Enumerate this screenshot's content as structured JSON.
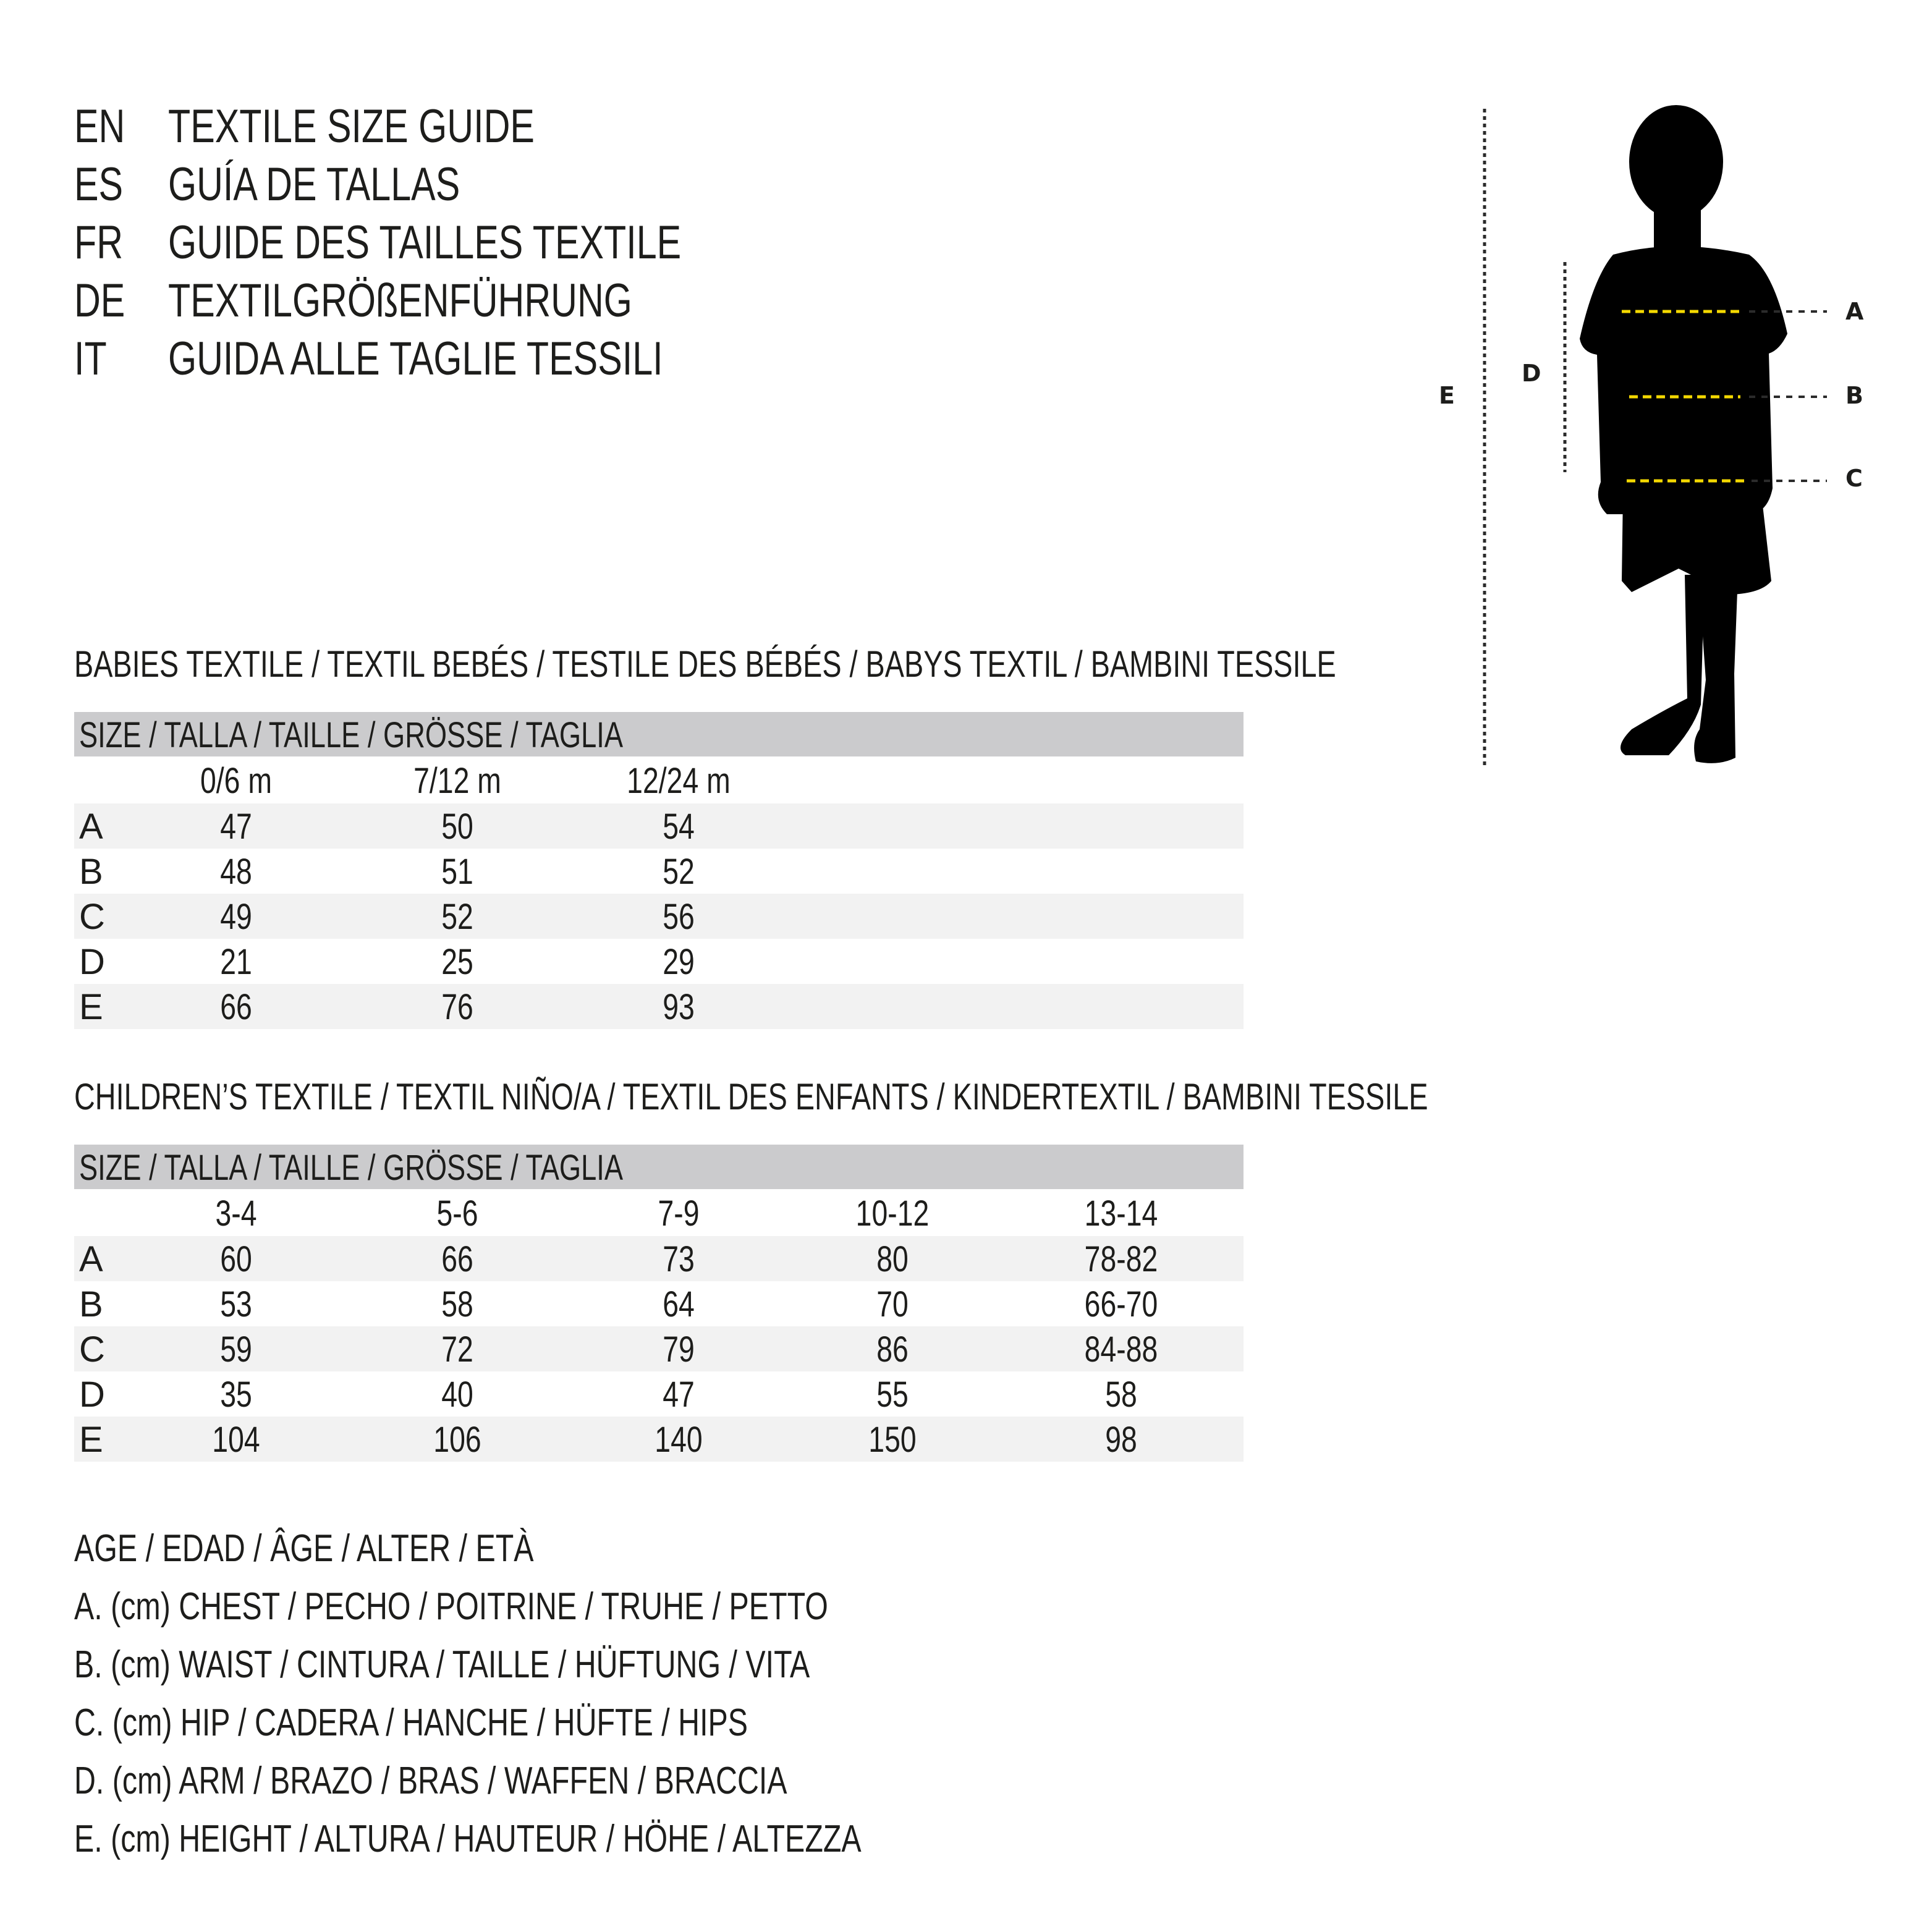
{
  "header": {
    "lines": [
      {
        "code": "EN",
        "title": "TEXTILE SIZE GUIDE"
      },
      {
        "code": "ES",
        "title": "GUÍA DE TALLAS"
      },
      {
        "code": "FR",
        "title": "GUIDE DES TAILLES TEXTILE"
      },
      {
        "code": "DE",
        "title": "TEXTILGRÖßENFÜHRUNG"
      },
      {
        "code": "IT",
        "title": "GUIDA ALLE TAGLIE TESSILI"
      }
    ]
  },
  "babies": {
    "title": "BABIES TEXTILE / TEXTIL BEBÉS / TESTILE DES BÉBÉS / BABYS TEXTIL / BAMBINI TESSILE",
    "size_header": "SIZE / TALLA / TAILLE / GRÖSSE / TAGLIA",
    "columns": [
      "0/6 m",
      "7/12 m",
      "12/24 m"
    ],
    "rows": [
      {
        "label": "A",
        "values": [
          "47",
          "50",
          "54"
        ]
      },
      {
        "label": "B",
        "values": [
          "48",
          "51",
          "52"
        ]
      },
      {
        "label": "C",
        "values": [
          "49",
          "52",
          "56"
        ]
      },
      {
        "label": "D",
        "values": [
          "21",
          "25",
          "29"
        ]
      },
      {
        "label": "E",
        "values": [
          "66",
          "76",
          "93"
        ]
      }
    ]
  },
  "children": {
    "title": "CHILDREN’S TEXTILE / TEXTIL NIÑO/A / TEXTIL DES ENFANTS / KINDERTEXTIL / BAMBINI TESSILE",
    "size_header": "SIZE / TALLA / TAILLE / GRÖSSE / TAGLIA",
    "columns": [
      "3-4",
      "5-6",
      "7-9",
      "10-12",
      "13-14"
    ],
    "rows": [
      {
        "label": "A",
        "values": [
          "60",
          "66",
          "73",
          "80",
          "78-82"
        ]
      },
      {
        "label": "B",
        "values": [
          "53",
          "58",
          "64",
          "70",
          "66-70"
        ]
      },
      {
        "label": "C",
        "values": [
          "59",
          "72",
          "79",
          "86",
          "84-88"
        ]
      },
      {
        "label": "D",
        "values": [
          "35",
          "40",
          "47",
          "55",
          "58"
        ]
      },
      {
        "label": "E",
        "values": [
          "104",
          "106",
          "140",
          "150",
          "98"
        ]
      }
    ]
  },
  "legend": [
    "AGE / EDAD / ÂGE / ALTER / ETÀ",
    "A. (cm) CHEST / PECHO / POITRINE / TRUHE / PETTO",
    "B. (cm) WAIST / CINTURA / TAILLE / HÜFTUNG / VITA",
    "C. (cm) HIP / CADERA / HANCHE / HÜFTE / HIPS",
    "D. (cm) ARM / BRAZO / BRAS / WAFFEN / BRACCIA",
    "E. (cm) HEIGHT / ALTURA / HAUTEUR / HÖHE / ALTEZZA"
  ],
  "figure": {
    "icon": "child-silhouette-icon",
    "labels": {
      "a": "A",
      "b": "B",
      "c": "C",
      "d": "D",
      "e": "E"
    },
    "colors": {
      "measure_line": "#f4d800",
      "guide_line": "#2b2b2b",
      "silhouette": "#000000",
      "header_bar": "#cbcbcd",
      "row_shade": "#f2f2f2"
    }
  }
}
